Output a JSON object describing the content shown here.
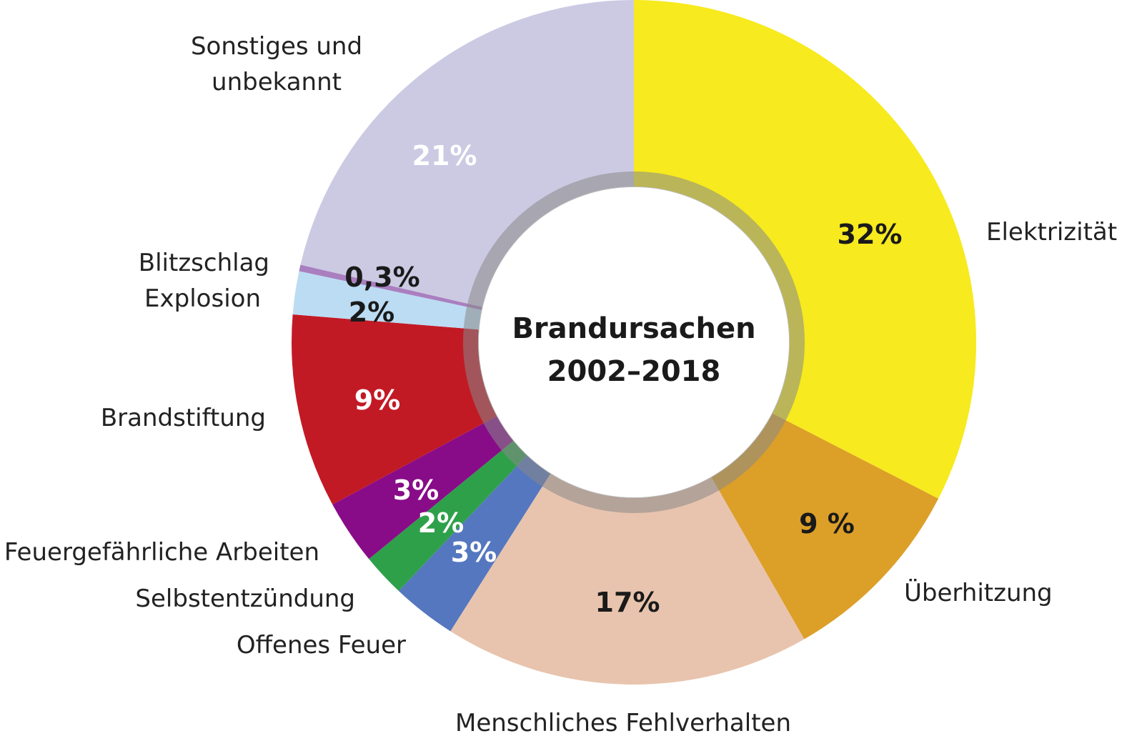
{
  "chart_data": {
    "type": "donut",
    "title": "Brandursachen 2002–2018",
    "categories": [
      "Elektrizität",
      "Überhitzung",
      "Menschliches Fehlverhalten",
      "Offenes Feuer",
      "Selbstentzündung",
      "Feuergefährliche Arbeiten",
      "Brandstiftung",
      "Explosion",
      "Blitzschlag",
      "Sonstiges und unbekannt"
    ],
    "values": [
      32,
      9,
      17,
      3,
      2,
      3,
      9,
      2,
      0.3,
      21
    ],
    "value_labels": [
      "32%",
      "9 %",
      "17%",
      "3%",
      "2%",
      "3%",
      "9%",
      "2%",
      "0,3%",
      "21%"
    ],
    "colors": [
      "#f7ea1e",
      "#dc9f28",
      "#e8c4ae",
      "#5577bf",
      "#2fa04a",
      "#880c88",
      "#c21a25",
      "#bcdcf3",
      "#a97fbf",
      "#cccae3"
    ],
    "value_label_colors": [
      "#1a1a1a",
      "#1a1a1a",
      "#1a1a1a",
      "#ffffff",
      "#ffffff",
      "#ffffff",
      "#ffffff",
      "#1a1a1a",
      "#1a1a1a",
      "#ffffff"
    ]
  }
}
